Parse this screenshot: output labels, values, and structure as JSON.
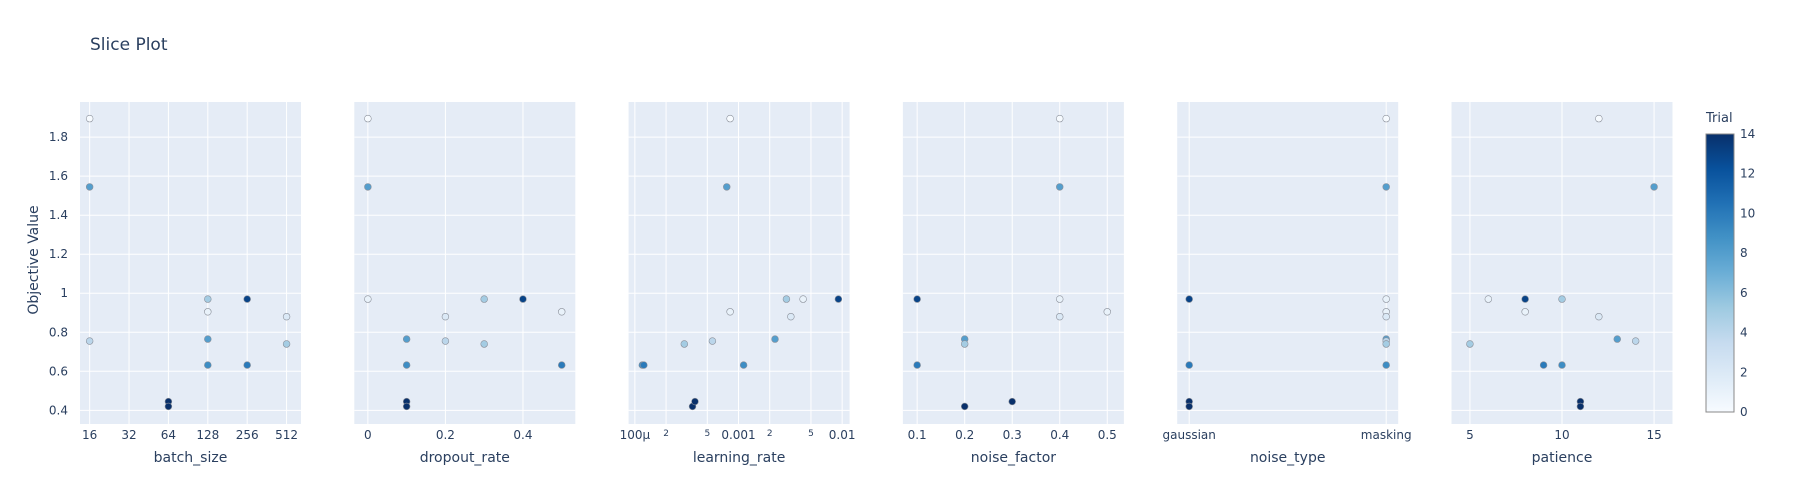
{
  "title": "Slice Plot",
  "y_axis_label": "Objective Value",
  "colorbar": {
    "title": "Trial",
    "ticks": [
      "0",
      "2",
      "4",
      "6",
      "8",
      "10",
      "12",
      "14"
    ],
    "range": [
      0,
      14
    ]
  },
  "colors": {
    "plot_bg": "#E5ECF6",
    "grid": "#ffffff",
    "text": "#2a3f5f",
    "scale": [
      "#f7fbff",
      "#deebf7",
      "#c6dbef",
      "#9ecae1",
      "#6baed6",
      "#4292c6",
      "#2171b5",
      "#08519c",
      "#08306b"
    ]
  },
  "chart_data": {
    "type": "scatter",
    "title": "Slice Plot",
    "ylabel": "Objective Value",
    "ylim": [
      0.33,
      1.98
    ],
    "y_ticks": [
      0.4,
      0.6,
      0.8,
      1,
      1.2,
      1.4,
      1.6,
      1.8
    ],
    "y_tick_labels": [
      "0.4",
      "0.6",
      "0.8",
      "1",
      "1.2",
      "1.4",
      "1.6",
      "1.8"
    ],
    "grid": true,
    "color_by": "Trial",
    "panels": [
      {
        "xlabel": "batch_size",
        "scale": "log2",
        "xlim": [
          13.5,
          660
        ],
        "ticks": [
          16,
          32,
          64,
          128,
          256,
          512
        ],
        "tick_labels": [
          "16",
          "32",
          "64",
          "128",
          "256",
          "512"
        ],
        "points": [
          {
            "x": 16,
            "y": 1.895,
            "trial": 0
          },
          {
            "x": 16,
            "y": 1.545,
            "trial": 8
          },
          {
            "x": 16,
            "y": 0.755,
            "trial": 4
          },
          {
            "x": 64,
            "y": 0.445,
            "trial": 14
          },
          {
            "x": 64,
            "y": 0.42,
            "trial": 14
          },
          {
            "x": 128,
            "y": 0.97,
            "trial": 5
          },
          {
            "x": 128,
            "y": 0.905,
            "trial": 1
          },
          {
            "x": 128,
            "y": 0.765,
            "trial": 8
          },
          {
            "x": 128,
            "y": 0.632,
            "trial": 9
          },
          {
            "x": 256,
            "y": 0.97,
            "trial": 13
          },
          {
            "x": 256,
            "y": 0.632,
            "trial": 10
          },
          {
            "x": 512,
            "y": 0.88,
            "trial": 2
          },
          {
            "x": 512,
            "y": 0.74,
            "trial": 5
          }
        ]
      },
      {
        "xlabel": "dropout_rate",
        "scale": "linear",
        "xlim": [
          -0.035,
          0.535
        ],
        "ticks": [
          0,
          0.2,
          0.4
        ],
        "tick_labels": [
          "0",
          "0.2",
          "0.4"
        ],
        "points": [
          {
            "x": 0,
            "y": 1.895,
            "trial": 0
          },
          {
            "x": 0,
            "y": 1.545,
            "trial": 8
          },
          {
            "x": 0,
            "y": 0.97,
            "trial": 1
          },
          {
            "x": 0.1,
            "y": 0.765,
            "trial": 8
          },
          {
            "x": 0.1,
            "y": 0.632,
            "trial": 9
          },
          {
            "x": 0.1,
            "y": 0.445,
            "trial": 14
          },
          {
            "x": 0.1,
            "y": 0.42,
            "trial": 14
          },
          {
            "x": 0.2,
            "y": 0.88,
            "trial": 2
          },
          {
            "x": 0.2,
            "y": 0.755,
            "trial": 4
          },
          {
            "x": 0.3,
            "y": 0.97,
            "trial": 5
          },
          {
            "x": 0.3,
            "y": 0.74,
            "trial": 5
          },
          {
            "x": 0.4,
            "y": 0.97,
            "trial": 13
          },
          {
            "x": 0.5,
            "y": 0.905,
            "trial": 1
          },
          {
            "x": 0.5,
            "y": 0.632,
            "trial": 10
          }
        ]
      },
      {
        "xlabel": "learning_rate",
        "scale": "log10",
        "xlim": [
          8.7e-05,
          0.0118
        ],
        "ticks": [
          0.0001,
          0.0002,
          0.0005,
          0.001,
          0.002,
          0.005,
          0.01
        ],
        "tick_labels": [
          "100μ",
          "2",
          "5",
          "0.001",
          "2",
          "5",
          "0.01"
        ],
        "minor_ticks": [
          0.0002,
          0.0005,
          0.002,
          0.005
        ],
        "points": [
          {
            "x": 0.000118,
            "y": 0.632,
            "trial": 9
          },
          {
            "x": 0.000122,
            "y": 0.632,
            "trial": 10
          },
          {
            "x": 0.0003,
            "y": 0.74,
            "trial": 5
          },
          {
            "x": 0.00036,
            "y": 0.42,
            "trial": 14
          },
          {
            "x": 0.00038,
            "y": 0.445,
            "trial": 14
          },
          {
            "x": 0.00056,
            "y": 0.755,
            "trial": 4
          },
          {
            "x": 0.00077,
            "y": 1.545,
            "trial": 8
          },
          {
            "x": 0.00083,
            "y": 1.895,
            "trial": 0
          },
          {
            "x": 0.00083,
            "y": 0.905,
            "trial": 1
          },
          {
            "x": 0.00112,
            "y": 0.632,
            "trial": 9
          },
          {
            "x": 0.00225,
            "y": 0.765,
            "trial": 8
          },
          {
            "x": 0.0029,
            "y": 0.97,
            "trial": 5
          },
          {
            "x": 0.0032,
            "y": 0.88,
            "trial": 2
          },
          {
            "x": 0.0042,
            "y": 0.97,
            "trial": 1
          },
          {
            "x": 0.0092,
            "y": 0.97,
            "trial": 13
          }
        ]
      },
      {
        "xlabel": "noise_factor",
        "scale": "linear",
        "xlim": [
          0.07,
          0.535
        ],
        "ticks": [
          0.1,
          0.2,
          0.3,
          0.4,
          0.5
        ],
        "tick_labels": [
          "0.1",
          "0.2",
          "0.3",
          "0.4",
          "0.5"
        ],
        "points": [
          {
            "x": 0.1,
            "y": 0.97,
            "trial": 13
          },
          {
            "x": 0.1,
            "y": 0.632,
            "trial": 10
          },
          {
            "x": 0.2,
            "y": 0.765,
            "trial": 8
          },
          {
            "x": 0.2,
            "y": 0.74,
            "trial": 5
          },
          {
            "x": 0.2,
            "y": 0.42,
            "trial": 14
          },
          {
            "x": 0.3,
            "y": 0.445,
            "trial": 14
          },
          {
            "x": 0.4,
            "y": 1.895,
            "trial": 0
          },
          {
            "x": 0.4,
            "y": 1.545,
            "trial": 8
          },
          {
            "x": 0.4,
            "y": 0.97,
            "trial": 1
          },
          {
            "x": 0.4,
            "y": 0.88,
            "trial": 2
          },
          {
            "x": 0.5,
            "y": 0.905,
            "trial": 1
          }
        ]
      },
      {
        "xlabel": "noise_type",
        "scale": "category",
        "categories": [
          "gaussian",
          "masking"
        ],
        "ticks": [
          "gaussian",
          "masking"
        ],
        "tick_labels": [
          "gaussian",
          "masking"
        ],
        "points": [
          {
            "x": "gaussian",
            "y": 0.97,
            "trial": 13
          },
          {
            "x": "gaussian",
            "y": 0.632,
            "trial": 10
          },
          {
            "x": "gaussian",
            "y": 0.445,
            "trial": 14
          },
          {
            "x": "gaussian",
            "y": 0.42,
            "trial": 14
          },
          {
            "x": "masking",
            "y": 1.895,
            "trial": 0
          },
          {
            "x": "masking",
            "y": 1.545,
            "trial": 8
          },
          {
            "x": "masking",
            "y": 0.97,
            "trial": 1
          },
          {
            "x": "masking",
            "y": 0.905,
            "trial": 1
          },
          {
            "x": "masking",
            "y": 0.88,
            "trial": 2
          },
          {
            "x": "masking",
            "y": 0.765,
            "trial": 8
          },
          {
            "x": "masking",
            "y": 0.755,
            "trial": 4
          },
          {
            "x": "masking",
            "y": 0.74,
            "trial": 5
          },
          {
            "x": "masking",
            "y": 0.632,
            "trial": 9
          }
        ]
      },
      {
        "xlabel": "patience",
        "scale": "linear",
        "xlim": [
          4.0,
          16.0
        ],
        "ticks": [
          5,
          10,
          15
        ],
        "tick_labels": [
          "5",
          "10",
          "15"
        ],
        "points": [
          {
            "x": 5,
            "y": 0.74,
            "trial": 5
          },
          {
            "x": 6,
            "y": 0.97,
            "trial": 1
          },
          {
            "x": 8,
            "y": 0.97,
            "trial": 13
          },
          {
            "x": 8,
            "y": 0.905,
            "trial": 1
          },
          {
            "x": 9,
            "y": 0.632,
            "trial": 10
          },
          {
            "x": 10,
            "y": 0.97,
            "trial": 5
          },
          {
            "x": 10,
            "y": 0.632,
            "trial": 9
          },
          {
            "x": 11,
            "y": 0.445,
            "trial": 14
          },
          {
            "x": 11,
            "y": 0.42,
            "trial": 14
          },
          {
            "x": 12,
            "y": 1.895,
            "trial": 0
          },
          {
            "x": 12,
            "y": 0.88,
            "trial": 2
          },
          {
            "x": 13,
            "y": 0.765,
            "trial": 8
          },
          {
            "x": 14,
            "y": 0.755,
            "trial": 4
          },
          {
            "x": 15,
            "y": 1.545,
            "trial": 8
          }
        ]
      }
    ]
  }
}
